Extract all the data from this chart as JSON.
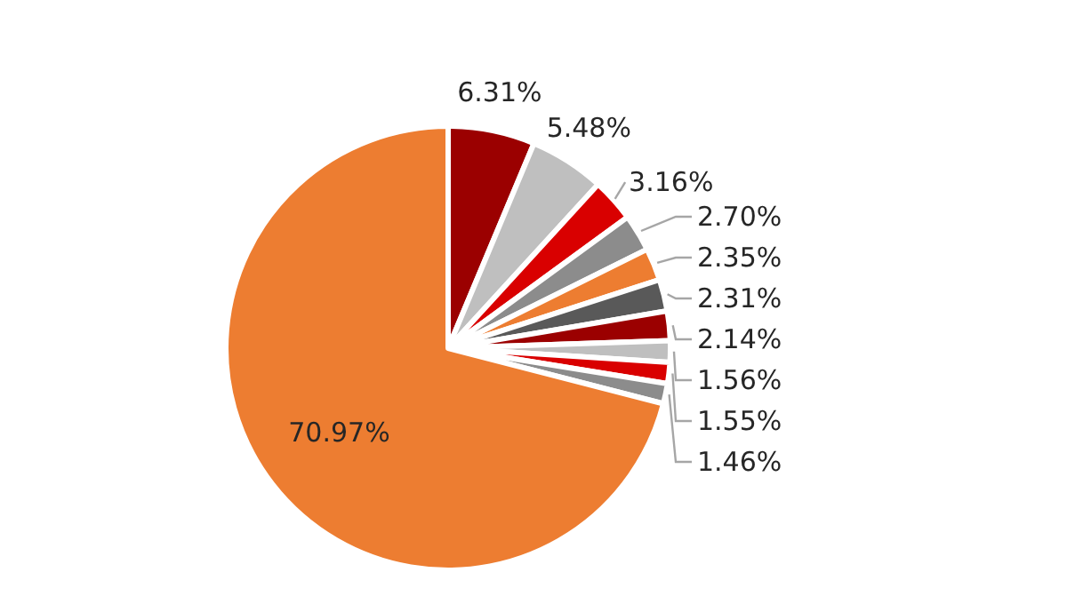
{
  "chart_data": {
    "type": "pie",
    "categories": [
      null,
      null,
      null,
      null,
      null,
      null,
      null,
      null,
      null,
      null,
      null
    ],
    "values": [
      6.31,
      5.48,
      3.16,
      2.7,
      2.35,
      2.31,
      2.14,
      1.56,
      1.55,
      1.46,
      70.97
    ],
    "value_labels": [
      "6.31%",
      "5.48%",
      "3.16%",
      "2.70%",
      "2.35%",
      "2.31%",
      "2.14%",
      "1.56%",
      "1.55%",
      "1.46%",
      "70.97%"
    ],
    "colors": [
      "#9b0000",
      "#bfbfbf",
      "#d90000",
      "#8c8c8c",
      "#ed7d31",
      "#595959",
      "#9b0000",
      "#bfbfbf",
      "#d90000",
      "#8c8c8c",
      "#ed7d31"
    ]
  }
}
